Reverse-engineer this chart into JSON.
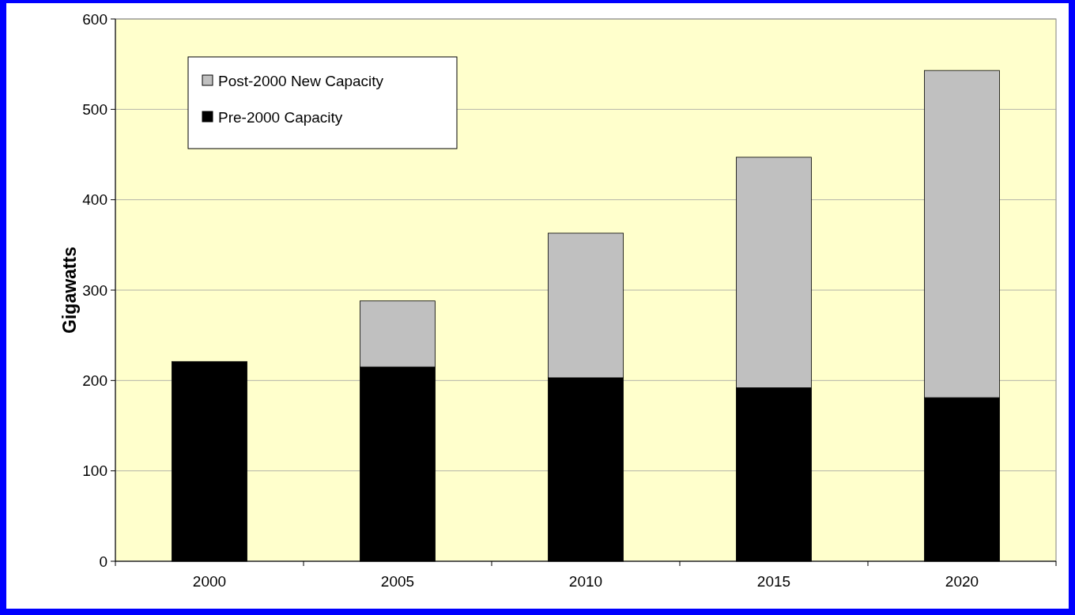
{
  "chart_data": {
    "type": "bar",
    "stacked": true,
    "ylabel": "Gigawatts",
    "categories": [
      "2000",
      "2005",
      "2010",
      "2015",
      "2020"
    ],
    "series": [
      {
        "name": "Pre-2000 Capacity",
        "color": "#000000",
        "values": [
          221,
          215,
          203,
          192,
          181
        ]
      },
      {
        "name": "Post-2000 New Capacity",
        "color": "#c0c0c0",
        "values": [
          null,
          73,
          160,
          255,
          362
        ]
      }
    ],
    "ylim": [
      0,
      600
    ],
    "yticks": [
      0,
      100,
      200,
      300,
      400,
      500,
      600
    ],
    "grid": "y",
    "legend": "top left"
  }
}
